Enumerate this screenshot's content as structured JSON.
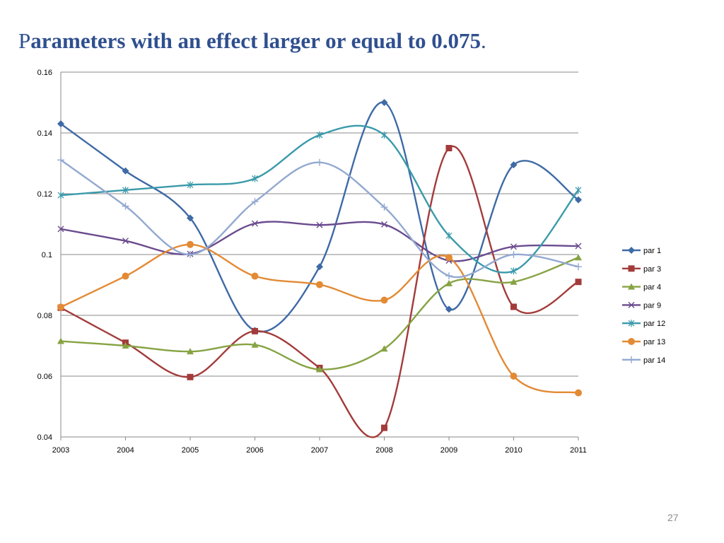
{
  "slide": {
    "title_first": "P",
    "title_rest": "arameters with an effect larger or equal to 0.075",
    "title_end": ".",
    "page_number": "27"
  },
  "chart_data": {
    "type": "line",
    "title": "Parameters with an effect larger or equal to 0.075.",
    "xlabel": "",
    "ylabel": "",
    "smoothed": true,
    "grid": "horizontal",
    "legend_position": "right",
    "categories": [
      "2003",
      "2004",
      "2005",
      "2006",
      "2007",
      "2008",
      "2009",
      "2010",
      "2011"
    ],
    "ylim": [
      0.04,
      0.16
    ],
    "y_ticks": [
      "0.16",
      "0.14",
      "0.12",
      "0.1",
      "0.08",
      "0.06",
      "0.04"
    ],
    "series": [
      {
        "name": "par 1",
        "color": "#3e6aa6",
        "marker": "diamond",
        "values": [
          0.143,
          0.1275,
          0.112,
          0.075,
          0.096,
          0.15,
          0.082,
          0.1295,
          0.118
        ]
      },
      {
        "name": "par 3",
        "color": "#a33b3b",
        "marker": "square",
        "values": [
          0.0825,
          0.071,
          0.0597,
          0.0748,
          0.0627,
          0.043,
          0.135,
          0.0828,
          0.091
        ]
      },
      {
        "name": "par 4",
        "color": "#86a343",
        "marker": "triangle",
        "values": [
          0.0715,
          0.07,
          0.0681,
          0.0703,
          0.0622,
          0.069,
          0.0905,
          0.091,
          0.099
        ]
      },
      {
        "name": "par 9",
        "color": "#6a4b8e",
        "marker": "x",
        "values": [
          0.1084,
          0.1045,
          0.1002,
          0.1102,
          0.1097,
          0.1099,
          0.098,
          0.1026,
          0.1028
        ]
      },
      {
        "name": "par 12",
        "color": "#3a9aaa",
        "marker": "star",
        "values": [
          0.1195,
          0.1212,
          0.1229,
          0.125,
          0.1393,
          0.1393,
          0.1062,
          0.0946,
          0.1212
        ]
      },
      {
        "name": "par 13",
        "color": "#e38a35",
        "marker": "circle",
        "values": [
          0.0827,
          0.0929,
          0.1033,
          0.0929,
          0.0901,
          0.085,
          0.099,
          0.06,
          0.0545
        ]
      },
      {
        "name": "par 14",
        "color": "#93a9d0",
        "marker": "plus",
        "values": [
          0.1311,
          0.1159,
          0.1,
          0.1174,
          0.1303,
          0.1156,
          0.093,
          0.1,
          0.096
        ]
      }
    ]
  }
}
